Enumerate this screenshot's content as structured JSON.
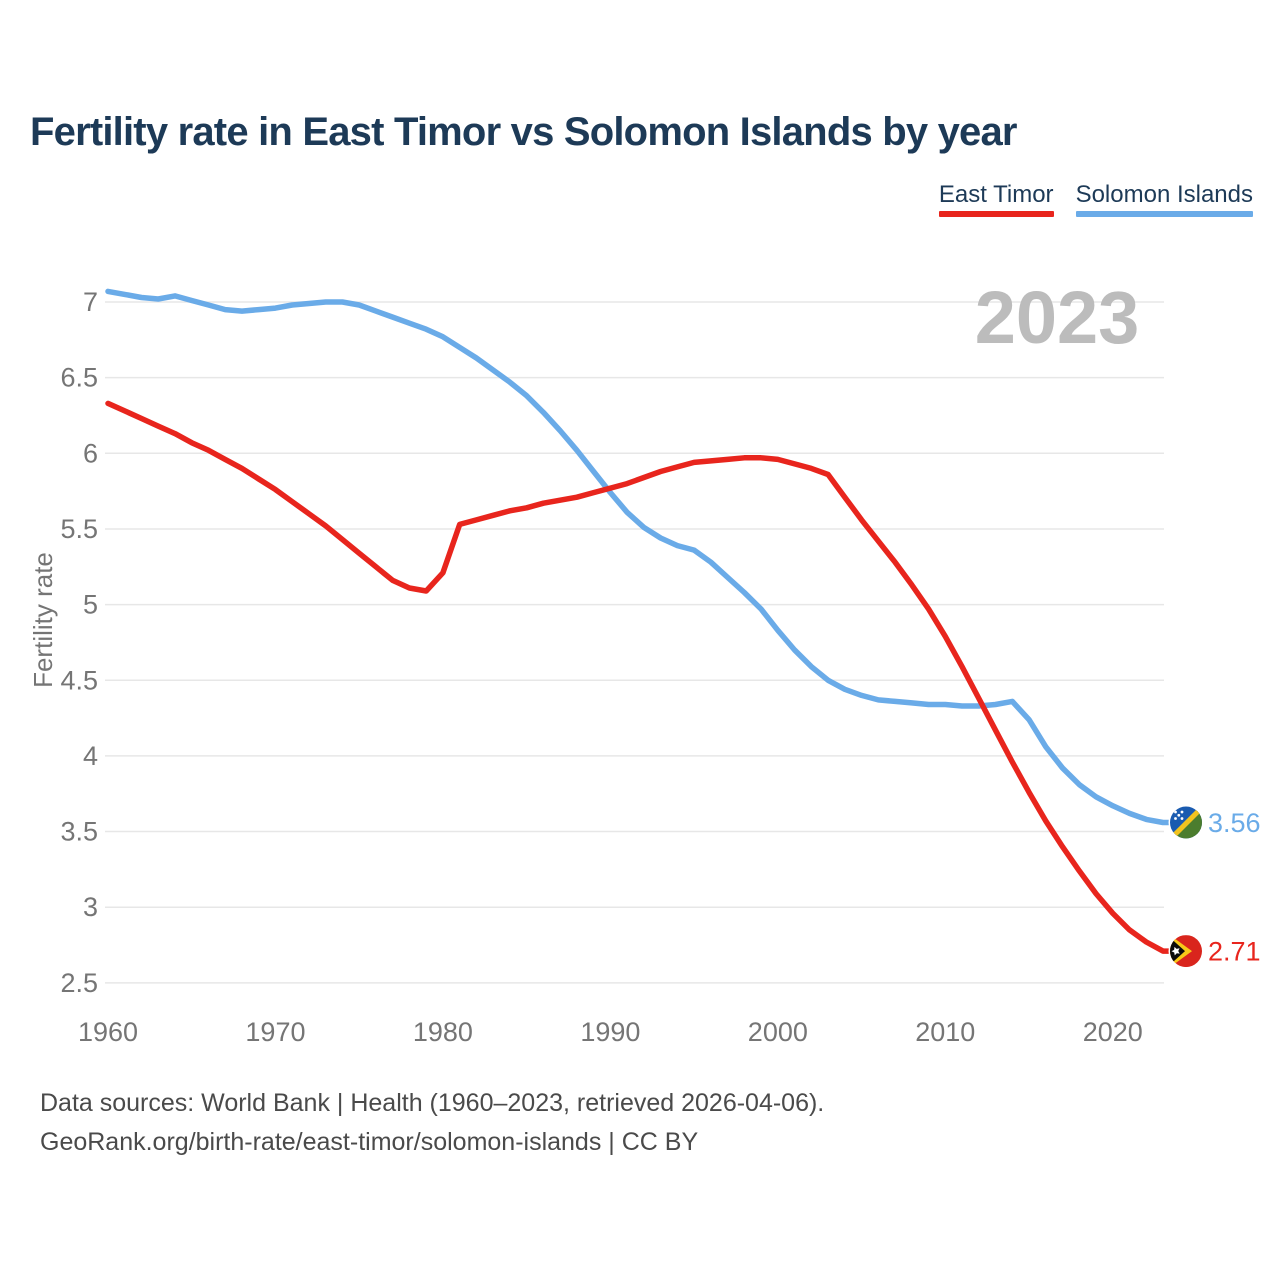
{
  "title": "Fertility rate in East Timor vs Solomon Islands by year",
  "legend": [
    {
      "label": "East Timor",
      "color": "#e8251d"
    },
    {
      "label": "Solomon Islands",
      "color": "#6aabe8"
    }
  ],
  "watermark": "2023",
  "footer": {
    "line1": "Data sources: World Bank | Health (1960–2023, retrieved 2026-04-06).",
    "line2": "GeoRank.org/birth-rate/east-timor/solomon-islands | CC BY"
  },
  "colors": {
    "east_timor": "#e8251d",
    "solomon_islands": "#6aabe8",
    "grid": "#e7e7e7",
    "axis_text": "#757575",
    "watermark": "#bcbcbc",
    "title_text": "#1d3a57"
  },
  "chart_data": {
    "type": "line",
    "title": "Fertility rate in East Timor vs Solomon Islands by year",
    "xlabel": "",
    "ylabel": "Fertility rate",
    "xlim": [
      1960,
      2023
    ],
    "ylim": [
      2.5,
      7.1
    ],
    "x_ticks": [
      1960,
      1970,
      1980,
      1990,
      2000,
      2010,
      2020
    ],
    "y_ticks": [
      7,
      6.5,
      6,
      5.5,
      5,
      4.5,
      4,
      3.5,
      3,
      2.5
    ],
    "grid": "horizontal",
    "legend_position": "top-right",
    "watermark_year": "2023",
    "x": [
      1960,
      1961,
      1962,
      1963,
      1964,
      1965,
      1966,
      1967,
      1968,
      1969,
      1970,
      1971,
      1972,
      1973,
      1974,
      1975,
      1976,
      1977,
      1978,
      1979,
      1980,
      1981,
      1982,
      1983,
      1984,
      1985,
      1986,
      1987,
      1988,
      1989,
      1990,
      1991,
      1992,
      1993,
      1994,
      1995,
      1996,
      1997,
      1998,
      1999,
      2000,
      2001,
      2002,
      2003,
      2004,
      2005,
      2006,
      2007,
      2008,
      2009,
      2010,
      2011,
      2012,
      2013,
      2014,
      2015,
      2016,
      2017,
      2018,
      2019,
      2020,
      2021,
      2022,
      2023
    ],
    "series": [
      {
        "name": "East Timor",
        "flag": "east-timor",
        "color": "#e8251d",
        "end_label": "2.71",
        "end_value": 2.71,
        "values": [
          6.33,
          6.28,
          6.23,
          6.18,
          6.13,
          6.07,
          6.02,
          5.96,
          5.9,
          5.83,
          5.76,
          5.68,
          5.6,
          5.52,
          5.43,
          5.34,
          5.25,
          5.16,
          5.11,
          5.09,
          5.21,
          5.53,
          5.56,
          5.59,
          5.62,
          5.64,
          5.67,
          5.69,
          5.71,
          5.74,
          5.77,
          5.8,
          5.84,
          5.88,
          5.91,
          5.94,
          5.95,
          5.96,
          5.97,
          5.97,
          5.96,
          5.93,
          5.9,
          5.86,
          5.71,
          5.56,
          5.42,
          5.28,
          5.13,
          4.97,
          4.79,
          4.59,
          4.38,
          4.17,
          3.96,
          3.76,
          3.57,
          3.4,
          3.24,
          3.09,
          2.96,
          2.85,
          2.77,
          2.71
        ]
      },
      {
        "name": "Solomon Islands",
        "flag": "solomon-islands",
        "color": "#6aabe8",
        "end_label": "3.56",
        "end_value": 3.56,
        "values": [
          7.07,
          7.05,
          7.03,
          7.02,
          7.04,
          7.01,
          6.98,
          6.95,
          6.94,
          6.95,
          6.96,
          6.98,
          6.99,
          7.0,
          7.0,
          6.98,
          6.94,
          6.9,
          6.86,
          6.82,
          6.77,
          6.7,
          6.63,
          6.55,
          6.47,
          6.38,
          6.27,
          6.15,
          6.02,
          5.88,
          5.74,
          5.61,
          5.51,
          5.44,
          5.39,
          5.36,
          5.28,
          5.18,
          5.08,
          4.97,
          4.83,
          4.7,
          4.59,
          4.5,
          4.44,
          4.4,
          4.37,
          4.36,
          4.35,
          4.34,
          4.34,
          4.33,
          4.33,
          4.34,
          4.36,
          4.24,
          4.06,
          3.92,
          3.81,
          3.73,
          3.67,
          3.62,
          3.58,
          3.56
        ]
      }
    ]
  }
}
